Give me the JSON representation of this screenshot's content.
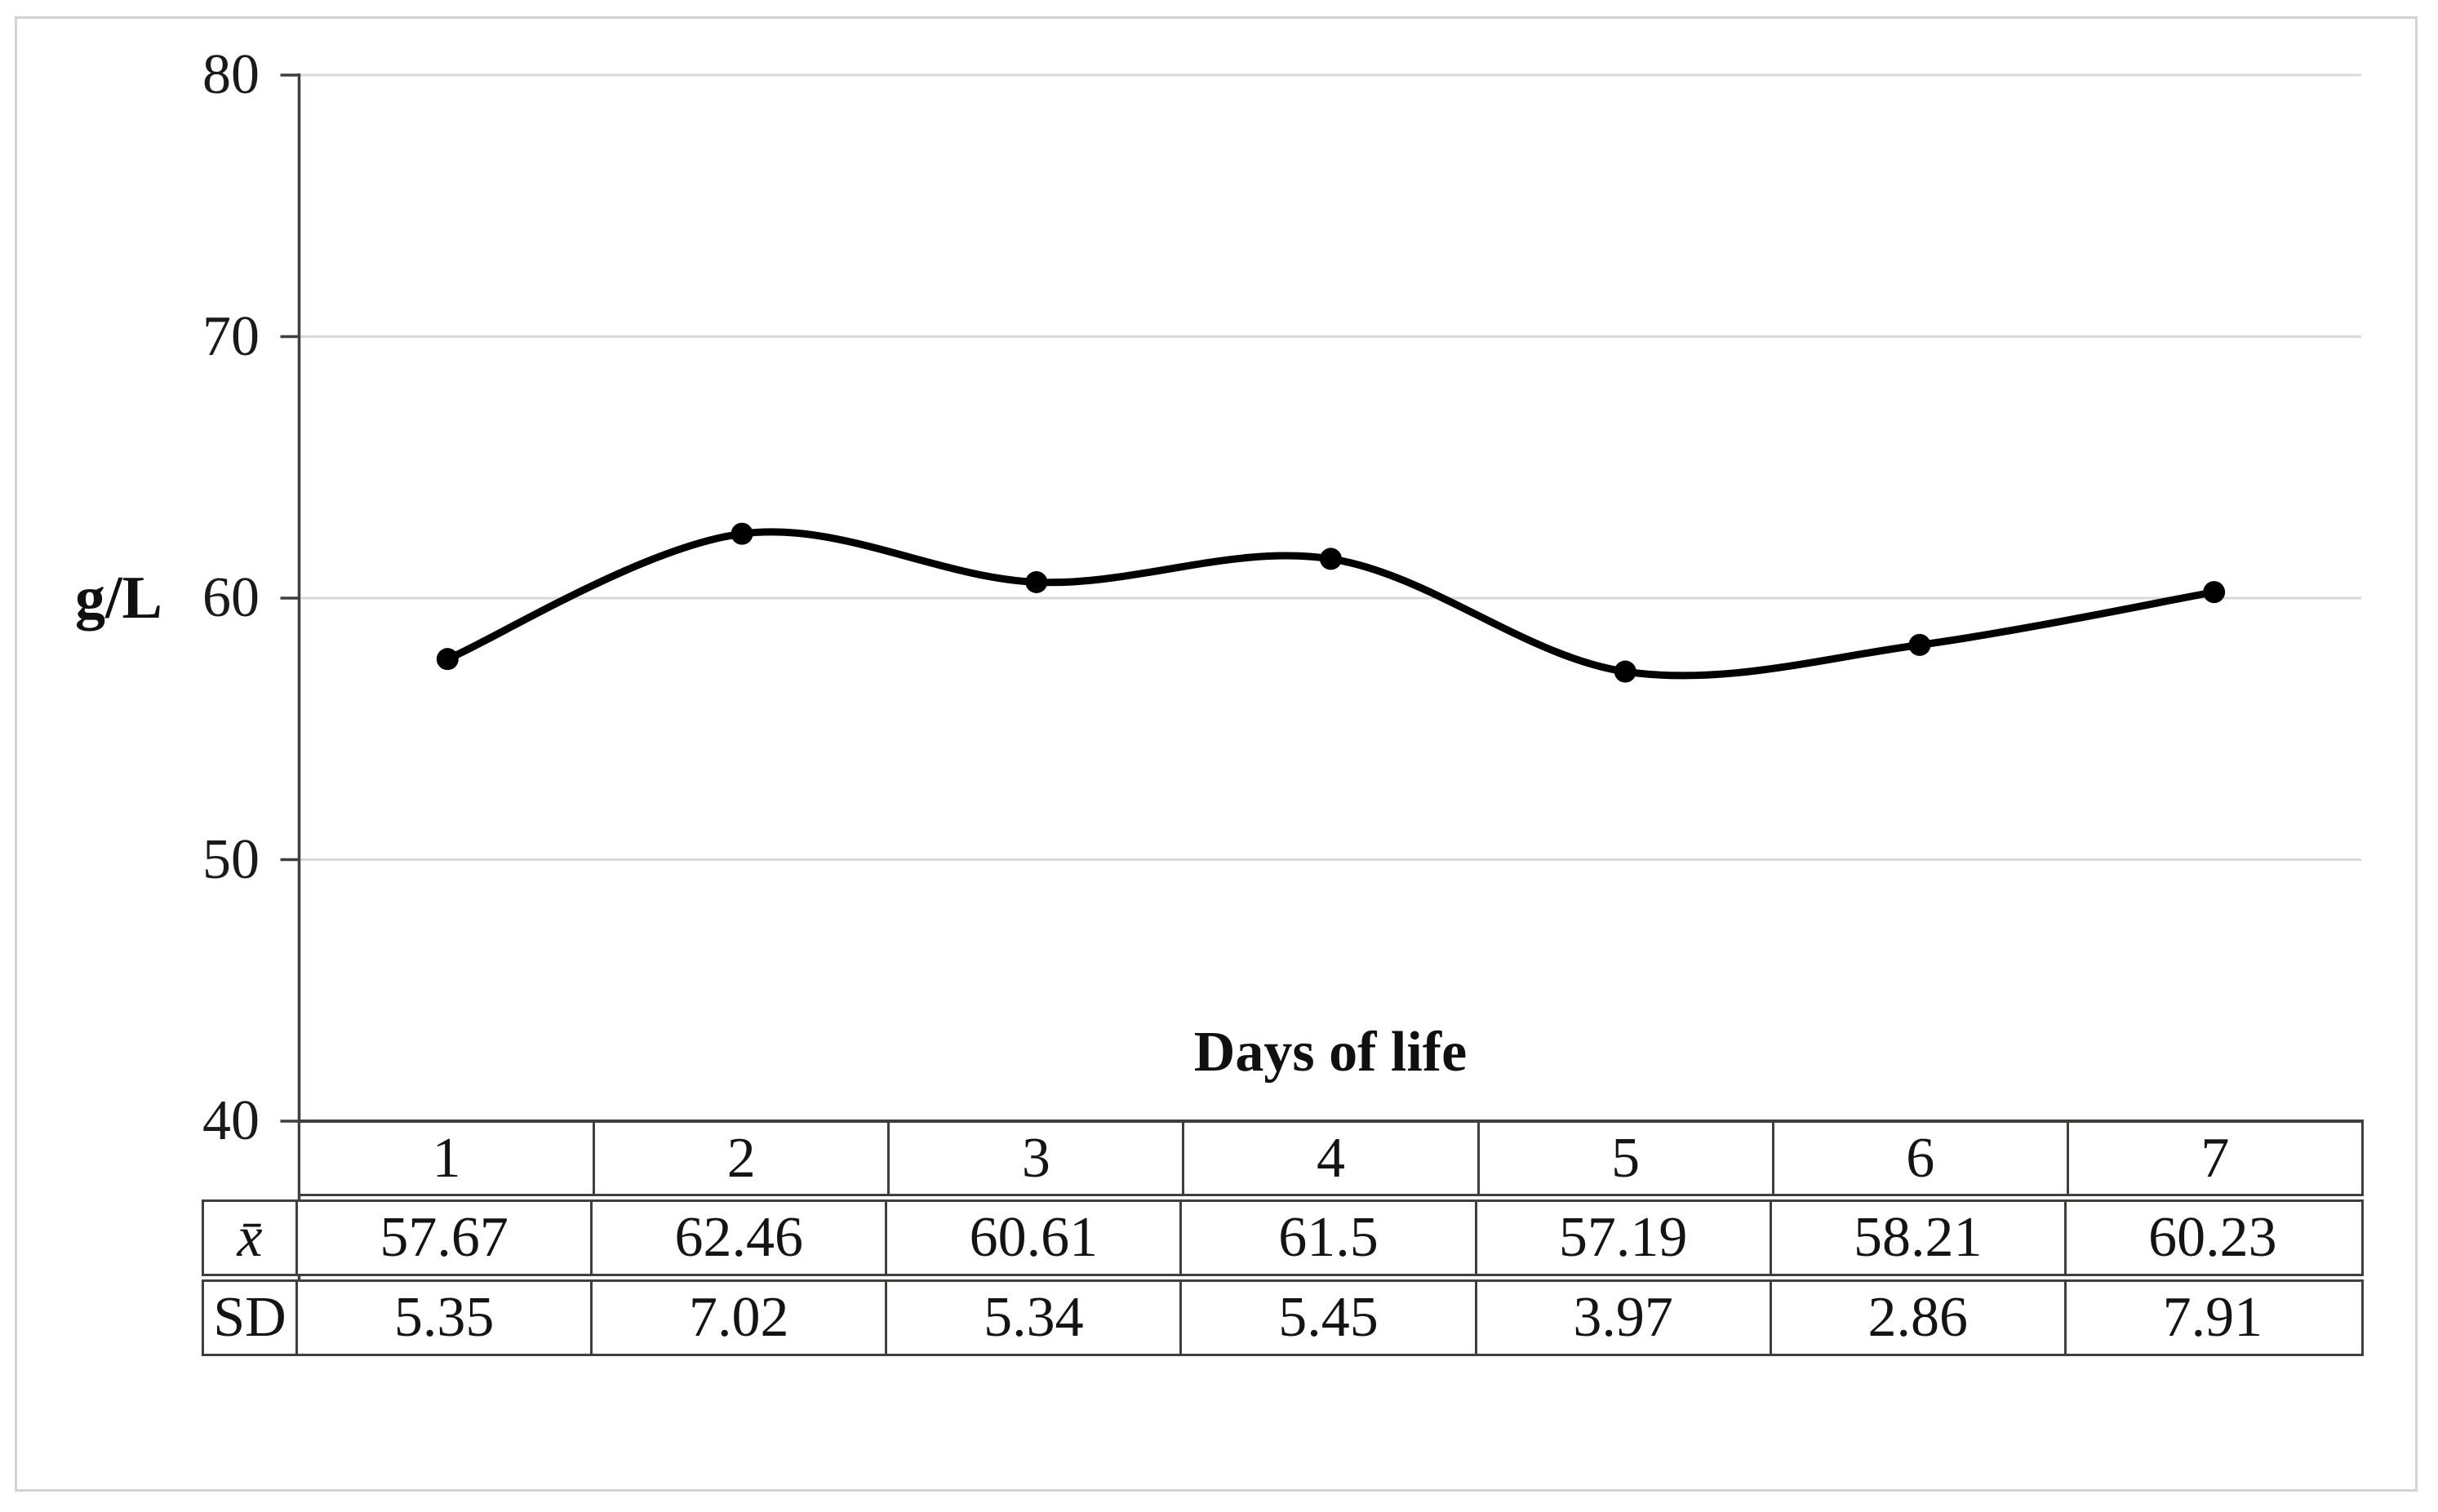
{
  "labels": {
    "y_axis": "g/L",
    "x_axis": "Days of life"
  },
  "axis": {
    "yticks": [
      "80",
      "70",
      "60",
      "50",
      "40"
    ]
  },
  "table": {
    "day_headers": [
      "1",
      "2",
      "3",
      "4",
      "5",
      "6",
      "7"
    ],
    "rows": [
      {
        "label": "x̄",
        "italic": true,
        "values": [
          "57.67",
          "62.46",
          "60.61",
          "61.5",
          "57.19",
          "58.21",
          "60.23"
        ]
      },
      {
        "label": "SD",
        "italic": false,
        "values": [
          "5.35",
          "7.02",
          "5.34",
          "5.45",
          "3.97",
          "2.86",
          "7.91"
        ]
      }
    ]
  },
  "chart_data": {
    "type": "line",
    "title": "",
    "categories": [
      1,
      2,
      3,
      4,
      5,
      6,
      7
    ],
    "series": [
      {
        "name": "x̄",
        "values": [
          57.67,
          62.46,
          60.61,
          61.5,
          57.19,
          58.21,
          60.23
        ]
      }
    ],
    "sd_values": [
      5.35,
      7.02,
      5.34,
      5.45,
      3.97,
      2.86,
      7.91
    ],
    "xlabel": "Days of life",
    "ylabel": "g/L",
    "ylim": [
      40,
      80
    ],
    "ytick_step": 10,
    "grid": true,
    "legend": "none",
    "smooth": true,
    "line_color": "#000000",
    "marker_color": "#000000",
    "grid_color": "#d9d9d9",
    "axis_color": "#3f3f3c"
  }
}
